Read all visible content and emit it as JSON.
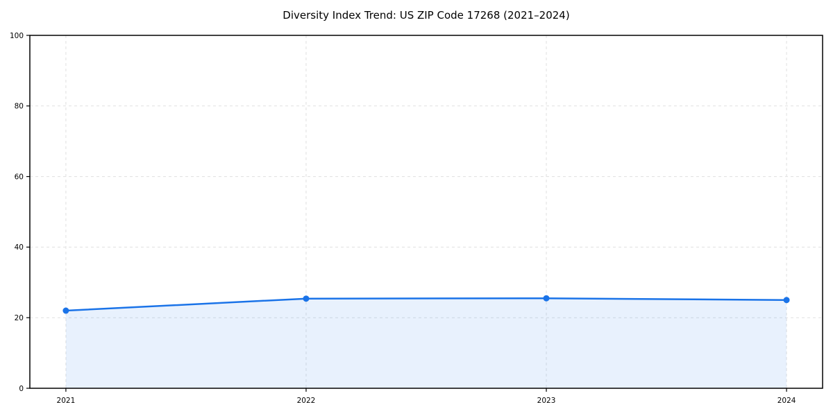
{
  "page": {
    "background": "#ffffff"
  },
  "chart_data": {
    "type": "area",
    "title": "Diversity Index Trend: US ZIP Code 17268 (2021–2024)",
    "x": [
      2021,
      2022,
      2023,
      2024
    ],
    "x_tick_labels": [
      "2021",
      "2022",
      "2023",
      "2024"
    ],
    "values": [
      22.0,
      25.4,
      25.5,
      25.0
    ],
    "series_name": "Diversity Index",
    "xlabel": "",
    "ylabel": "",
    "ylim": [
      0,
      100
    ],
    "yticks": [
      0,
      20,
      40,
      60,
      80,
      100
    ],
    "y_tick_labels": [
      "0",
      "20",
      "40",
      "60",
      "80",
      "100"
    ],
    "grid": true,
    "grid_style": "dashed",
    "legend": "none",
    "marker": "circle",
    "colors": {
      "line": "#1a73e8",
      "marker": "#1a73e8",
      "fill": "#1a73e8",
      "fill_opacity": 0.1,
      "grid": "#e0e0e0",
      "spine": "#000000",
      "tick_label": "#000000",
      "title": "#000000",
      "background": "#ffffff"
    }
  }
}
